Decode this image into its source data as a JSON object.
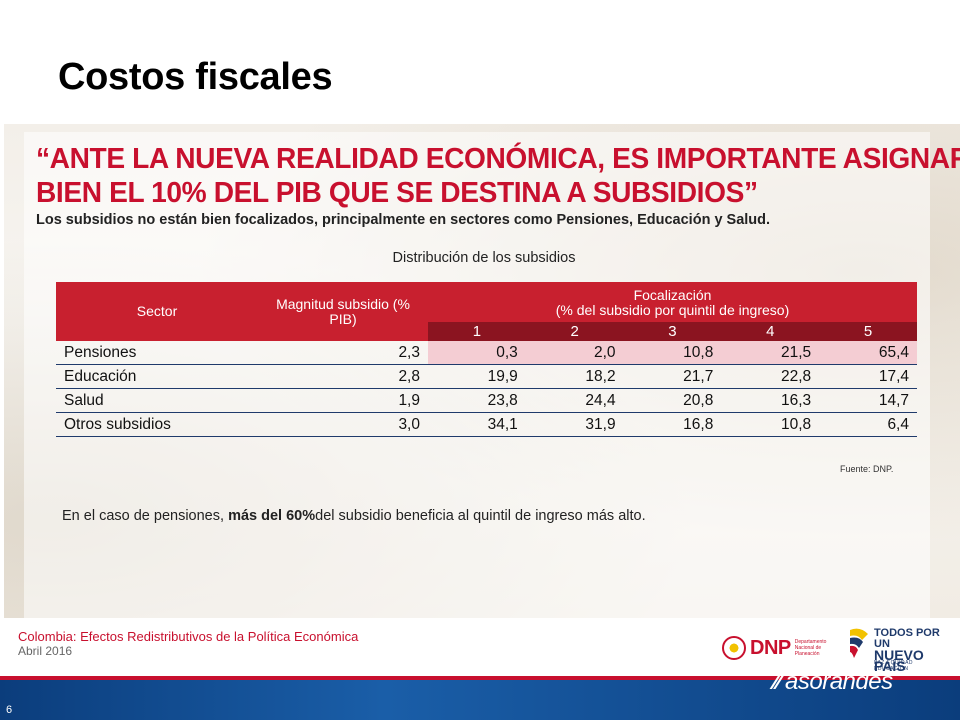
{
  "slide": {
    "title": "Costos fiscales",
    "page_number": "6"
  },
  "panel": {
    "headline_line1": "“ANTE LA NUEVA REALIDAD ECONÓMICA, ES IMPORTANTE ASIGNAR",
    "headline_line2": "BIEN EL 10% DEL PIB QUE SE DESTINA A SUBSIDIOS”",
    "subline": "Los subsidios no están bien focalizados, principalmente en sectores como Pensiones, Educación y Salud.",
    "table_title": "Distribución de los subsidios",
    "source": "Fuente: DNP.",
    "note_part1": "En el caso de pensiones, ",
    "note_bold": "más del 60%",
    "note_part2": " del subsidio beneficia al quintil de ingreso más alto."
  },
  "table": {
    "col_sector": "Sector",
    "col_magnitud": "Magnitud subsidio (% PIB)",
    "col_focal_line1": "Focalización",
    "col_focal_line2": "(% del subsidio por quintil de ingreso)",
    "quintiles": [
      "1",
      "2",
      "3",
      "4",
      "5"
    ],
    "rows": [
      {
        "sector": "Pensiones",
        "magnitud": "2,3",
        "q": [
          "0,3",
          "2,0",
          "10,8",
          "21,5",
          "65,4"
        ]
      },
      {
        "sector": "Educación",
        "magnitud": "2,8",
        "q": [
          "19,9",
          "18,2",
          "21,7",
          "22,8",
          "17,4"
        ]
      },
      {
        "sector": "Salud",
        "magnitud": "1,9",
        "q": [
          "23,8",
          "24,4",
          "20,8",
          "16,3",
          "14,7"
        ]
      },
      {
        "sector": "Otros subsidios",
        "magnitud": "3,0",
        "q": [
          "34,1",
          "31,9",
          "16,8",
          "10,8",
          "6,4"
        ]
      }
    ]
  },
  "footer": {
    "line1": "Colombia: Efectos Redistributivos de la Política Económica",
    "line2": "Abril 2016",
    "dnp_word": "DNP",
    "dnp_small": "Departamento Nacional de Planeación",
    "todos_line1": "TODOS POR UN",
    "todos_line2": "NUEVO PAÍS",
    "todos_tag": "PAZ EQUIDAD EDUCACIÓN",
    "asorandes": "asorandes"
  },
  "colors": {
    "accent": "#c8102e",
    "dark_red": "#8b1420",
    "navy": "#1f3a6b",
    "highlight": "#f4cdd3"
  }
}
